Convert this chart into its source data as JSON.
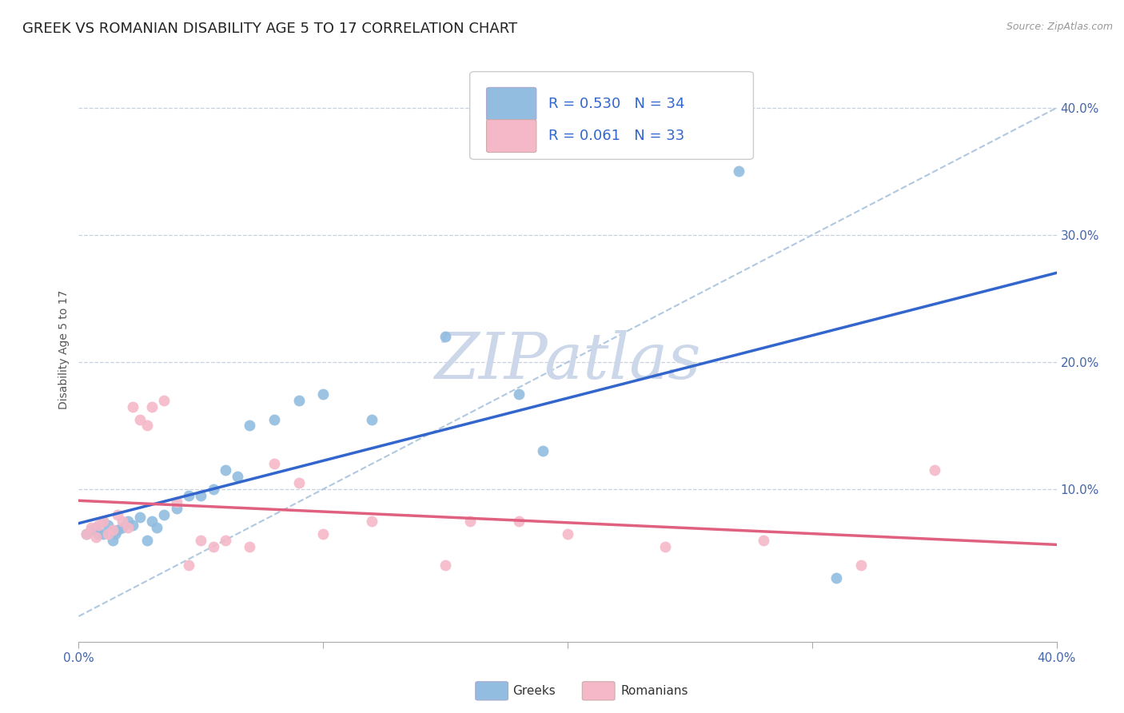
{
  "title": "GREEK VS ROMANIAN DISABILITY AGE 5 TO 17 CORRELATION CHART",
  "source": "Source: ZipAtlas.com",
  "ylabel": "Disability Age 5 to 17",
  "xlim": [
    0.0,
    0.4
  ],
  "ylim": [
    -0.02,
    0.44
  ],
  "xticks": [
    0.0,
    0.1,
    0.2,
    0.3,
    0.4
  ],
  "yticks": [
    0.1,
    0.2,
    0.3,
    0.4
  ],
  "ytick_labels_right": [
    "10.0%",
    "20.0%",
    "30.0%",
    "40.0%"
  ],
  "xtick_labels": [
    "0.0%",
    "",
    "",
    "",
    "40.0%"
  ],
  "greek_color": "#92bde0",
  "romanian_color": "#f5b8c8",
  "greek_line_color": "#3366cc",
  "romanian_line_color": "#e06080",
  "diagonal_color": "#b0c8e0",
  "R_greek": 0.53,
  "N_greek": 34,
  "R_romanian": 0.061,
  "N_romanian": 33,
  "greeks_x": [
    0.003,
    0.005,
    0.007,
    0.008,
    0.01,
    0.01,
    0.012,
    0.014,
    0.015,
    0.016,
    0.018,
    0.02,
    0.022,
    0.025,
    0.028,
    0.03,
    0.032,
    0.035,
    0.04,
    0.045,
    0.05,
    0.055,
    0.06,
    0.065,
    0.07,
    0.08,
    0.09,
    0.1,
    0.12,
    0.15,
    0.18,
    0.19,
    0.27,
    0.31
  ],
  "greeks_y": [
    0.065,
    0.068,
    0.07,
    0.065,
    0.075,
    0.065,
    0.072,
    0.06,
    0.065,
    0.068,
    0.07,
    0.075,
    0.072,
    0.078,
    0.06,
    0.075,
    0.07,
    0.08,
    0.085,
    0.095,
    0.095,
    0.1,
    0.115,
    0.11,
    0.15,
    0.155,
    0.17,
    0.175,
    0.155,
    0.22,
    0.175,
    0.13,
    0.35,
    0.03
  ],
  "romanians_x": [
    0.003,
    0.005,
    0.007,
    0.008,
    0.01,
    0.012,
    0.014,
    0.016,
    0.018,
    0.02,
    0.022,
    0.025,
    0.028,
    0.03,
    0.035,
    0.04,
    0.045,
    0.05,
    0.055,
    0.06,
    0.07,
    0.08,
    0.09,
    0.1,
    0.12,
    0.15,
    0.16,
    0.18,
    0.2,
    0.24,
    0.28,
    0.32,
    0.35
  ],
  "romanians_y": [
    0.065,
    0.07,
    0.062,
    0.072,
    0.075,
    0.065,
    0.068,
    0.08,
    0.075,
    0.07,
    0.165,
    0.155,
    0.15,
    0.165,
    0.17,
    0.09,
    0.04,
    0.06,
    0.055,
    0.06,
    0.055,
    0.12,
    0.105,
    0.065,
    0.075,
    0.04,
    0.075,
    0.075,
    0.065,
    0.055,
    0.06,
    0.04,
    0.115
  ],
  "background_color": "#ffffff",
  "grid_color": "#c8d0e0",
  "watermark": "ZIPatlas",
  "watermark_color": "#ccd8ea",
  "title_fontsize": 13,
  "axis_label_fontsize": 10,
  "tick_fontsize": 11,
  "legend_fontsize": 13,
  "marker_size": 100
}
